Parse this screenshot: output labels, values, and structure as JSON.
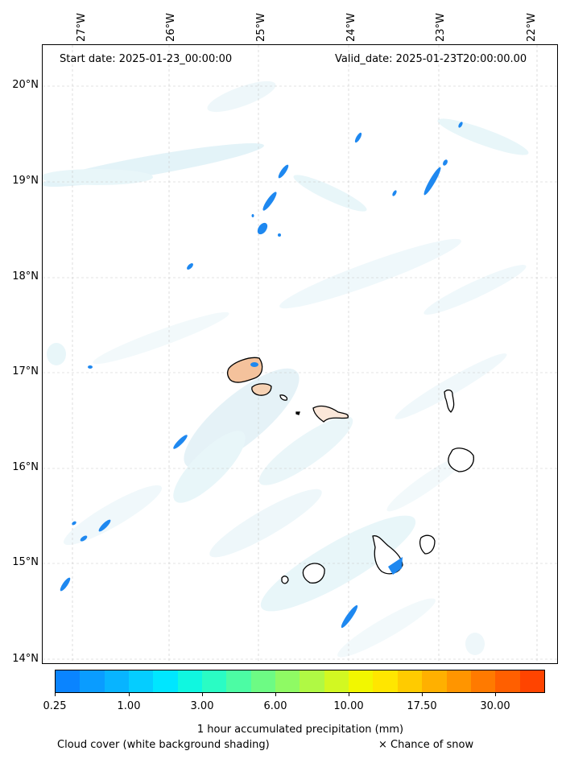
{
  "header": {
    "start_date": "Start date: 2025-01-23_00:00:00",
    "valid_date": "Valid_date: 2025-01-23T20:00:00.00"
  },
  "axes": {
    "lat_labels": [
      "20°N",
      "19°N",
      "18°N",
      "17°N",
      "16°N",
      "15°N",
      "14°N"
    ],
    "lon_labels": [
      "27°W",
      "26°W",
      "25°W",
      "24°W",
      "23°W",
      "22°W"
    ]
  },
  "colorbar": {
    "ticks": [
      "0.25",
      "1.00",
      "3.00",
      "6.00",
      "10.00",
      "17.50",
      "30.00"
    ],
    "label": "1 hour accumulated precipitation (mm)",
    "colors": [
      "#0a84ff",
      "#0a9cff",
      "#08b4ff",
      "#05cdff",
      "#00e6ff",
      "#10f7e0",
      "#2afcc4",
      "#4cfca4",
      "#6dfb84",
      "#8ffa64",
      "#b0f944",
      "#d2f822",
      "#f2f700",
      "#ffe600",
      "#ffcb00",
      "#ffb000",
      "#ff9500",
      "#ff7a00",
      "#ff5f00",
      "#ff4400"
    ]
  },
  "legend": {
    "cloud": "Cloud cover (white background shading)",
    "snow": "× Chance of snow"
  },
  "chart_data": {
    "type": "map",
    "title": "",
    "lat_range": [
      13.95,
      20.4
    ],
    "lon_range": [
      -27.35,
      -21.8
    ],
    "grid": true,
    "precip_cells": [
      {
        "lon": -24.85,
        "lat": 19.1,
        "mm": 0.5
      },
      {
        "lon": -24.9,
        "lat": 18.8,
        "mm": 0.5
      },
      {
        "lon": -25.0,
        "lat": 18.5,
        "mm": 0.5
      },
      {
        "lon": -23.9,
        "lat": 19.45,
        "mm": 0.4
      },
      {
        "lon": -22.95,
        "lat": 19.0,
        "mm": 0.5
      },
      {
        "lon": -23.55,
        "lat": 18.88,
        "mm": 0.3
      },
      {
        "lon": -25.8,
        "lat": 18.1,
        "mm": 0.3
      },
      {
        "lon": -25.0,
        "lat": 16.95,
        "mm": 0.4
      },
      {
        "lon": -25.9,
        "lat": 16.3,
        "mm": 0.4
      },
      {
        "lon": -26.7,
        "lat": 15.38,
        "mm": 0.4
      },
      {
        "lon": -26.98,
        "lat": 15.43,
        "mm": 0.3
      },
      {
        "lon": -27.1,
        "lat": 14.8,
        "mm": 0.4
      },
      {
        "lon": -24.0,
        "lat": 14.5,
        "mm": 0.5
      },
      {
        "lon": -23.5,
        "lat": 14.97,
        "mm": 0.6
      }
    ],
    "islands": [
      "Santo Antão",
      "São Vicente",
      "Santa Luzia",
      "São Nicolau",
      "Sal",
      "Boa Vista",
      "Maio",
      "Santiago",
      "Fogo",
      "Brava"
    ]
  }
}
